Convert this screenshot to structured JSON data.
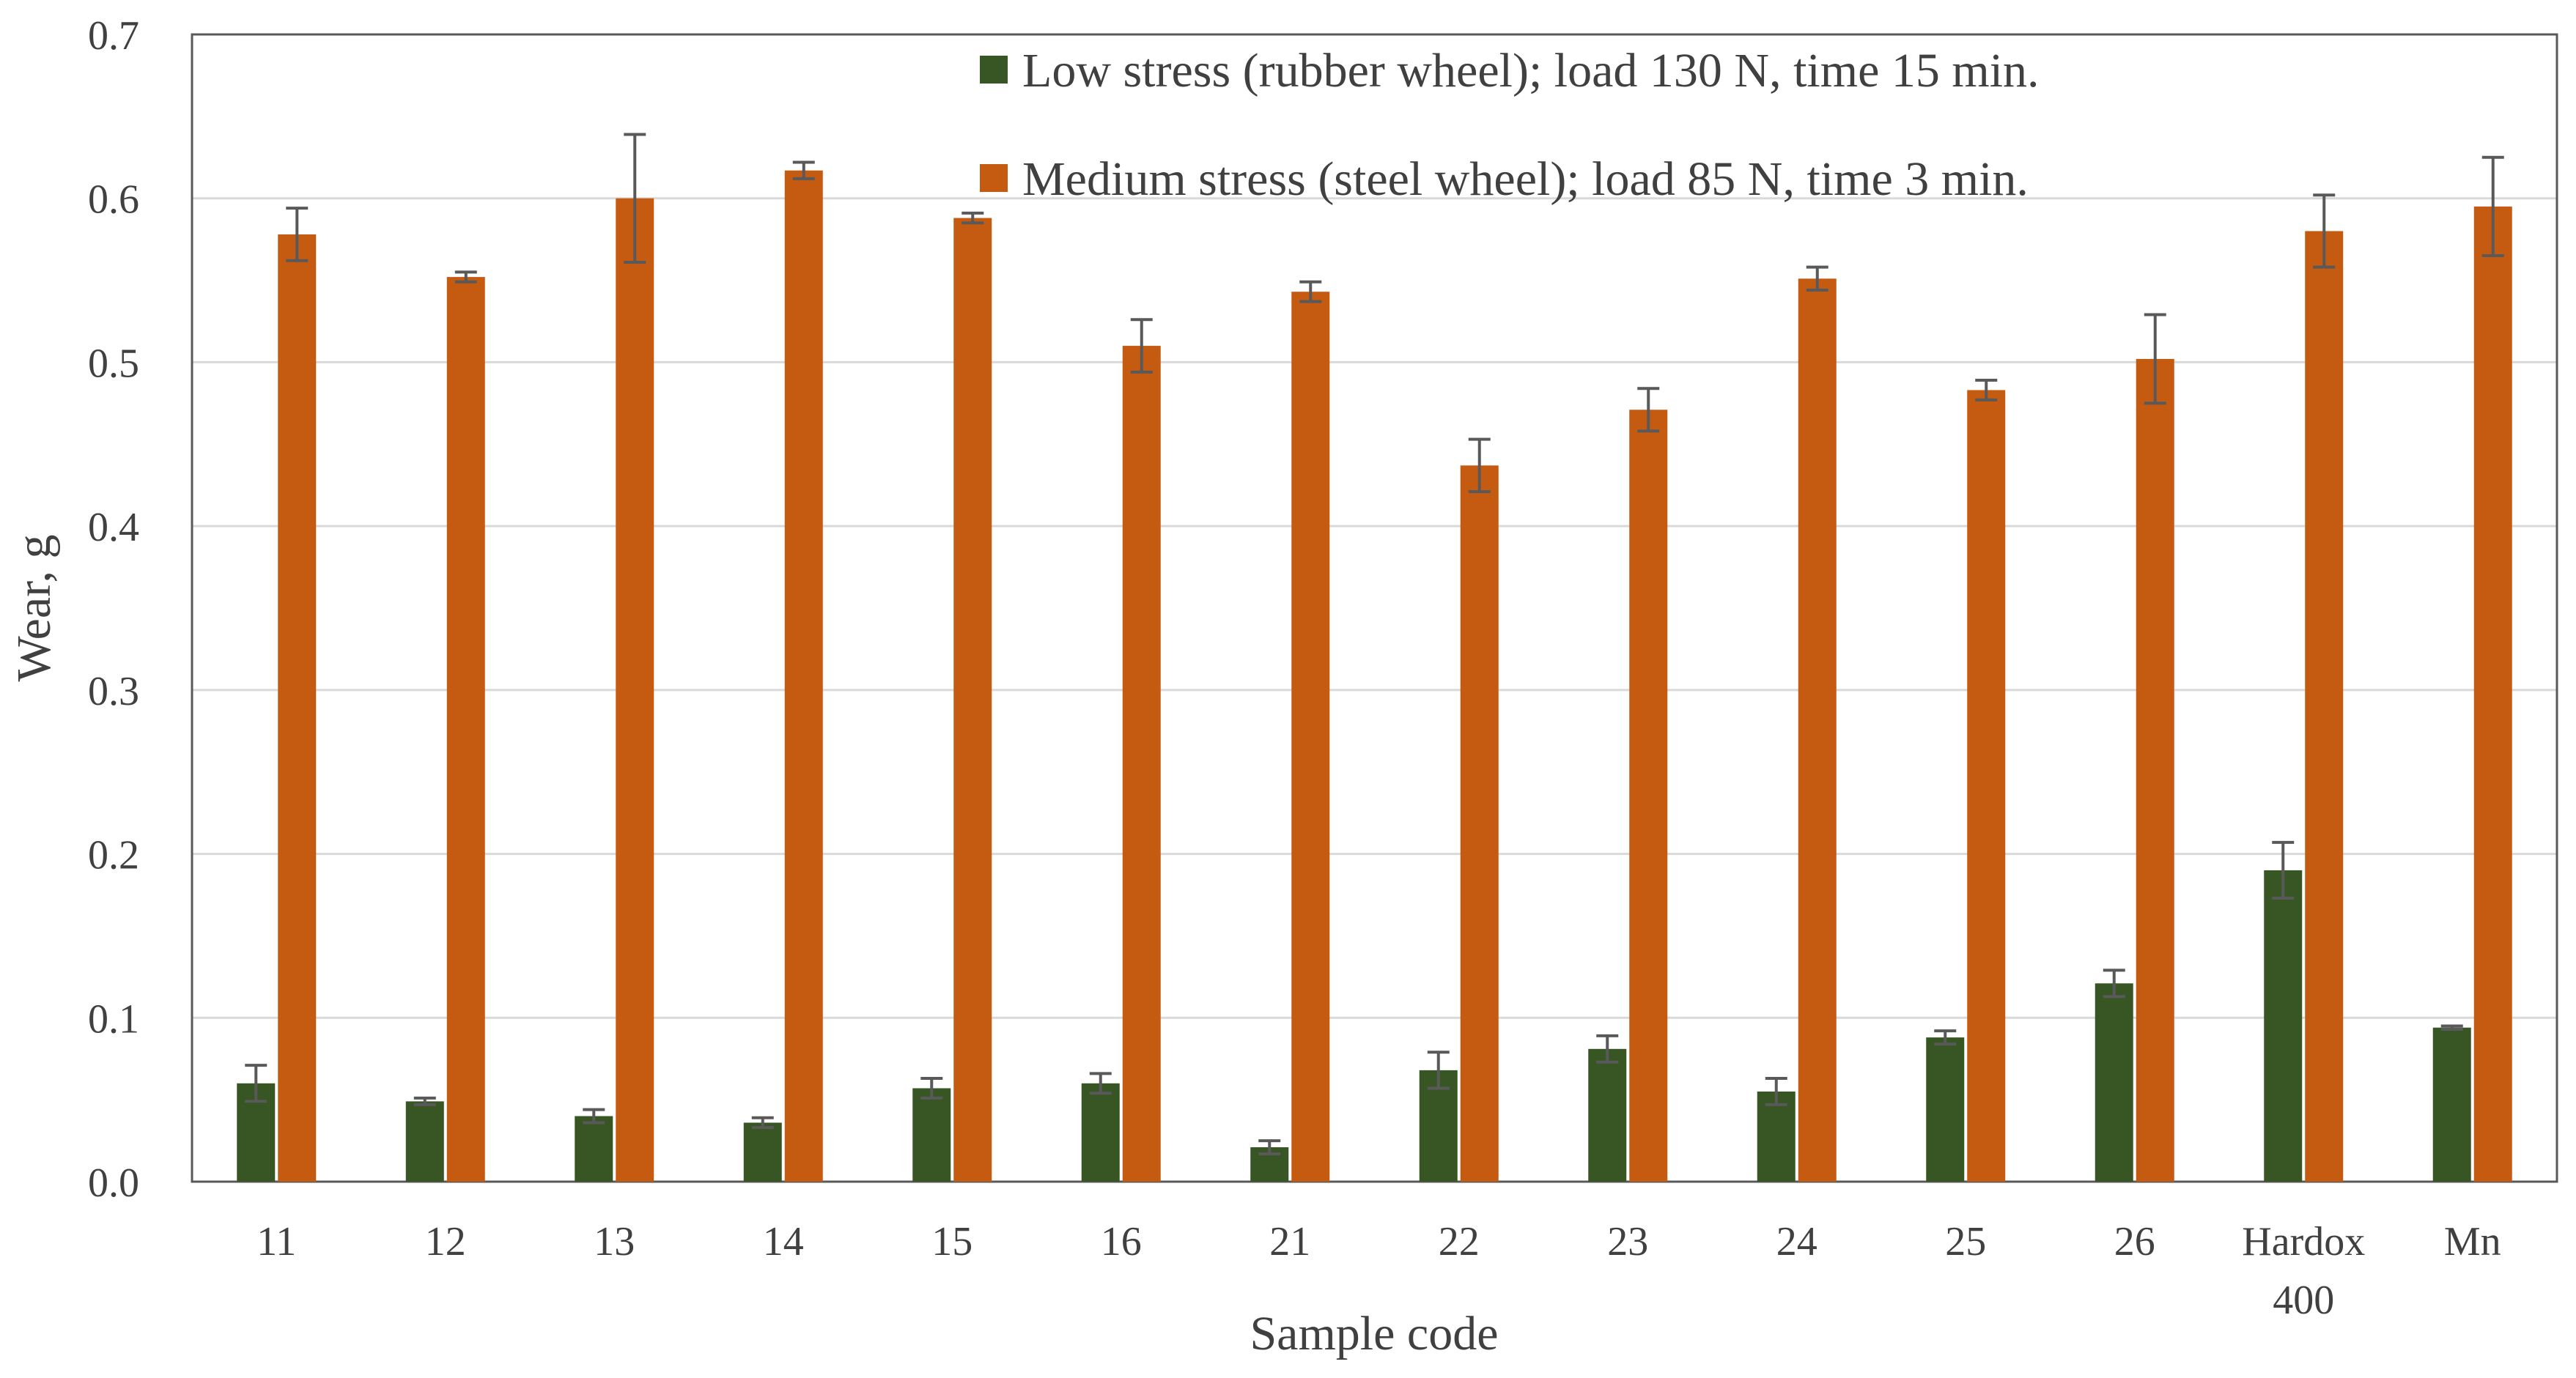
{
  "chart_data": {
    "type": "bar",
    "title": "",
    "xlabel": "Sample code",
    "ylabel": "Wear, g",
    "ylim": [
      0,
      0.7
    ],
    "yticks": [
      "0.0",
      "0.1",
      "0.2",
      "0.3",
      "0.4",
      "0.5",
      "0.6",
      "0.7"
    ],
    "grid": true,
    "legend_position": "top-right",
    "categories": [
      [
        "11"
      ],
      [
        "12"
      ],
      [
        "13"
      ],
      [
        "14"
      ],
      [
        "15"
      ],
      [
        "16"
      ],
      [
        "21"
      ],
      [
        "22"
      ],
      [
        "23"
      ],
      [
        "24"
      ],
      [
        "25"
      ],
      [
        "26"
      ],
      [
        "Hardox",
        "400"
      ],
      [
        "Mn"
      ]
    ],
    "series": [
      {
        "name": "Low stress (rubber wheel); load 130 N, time 15 min.",
        "color": "#375623",
        "values": [
          0.06,
          0.049,
          0.04,
          0.036,
          0.057,
          0.06,
          0.021,
          0.068,
          0.081,
          0.055,
          0.088,
          0.121,
          0.19,
          0.094
        ],
        "errors": [
          0.011,
          0.002,
          0.004,
          0.003,
          0.006,
          0.006,
          0.004,
          0.011,
          0.008,
          0.008,
          0.004,
          0.008,
          0.017,
          0.001
        ]
      },
      {
        "name": "Medium stress (steel wheel); load 85 N, time 3 min.",
        "color": "#C55A11",
        "values": [
          0.578,
          0.552,
          0.6,
          0.617,
          0.588,
          0.51,
          0.543,
          0.437,
          0.471,
          0.551,
          0.483,
          0.502,
          0.58,
          0.595
        ],
        "errors": [
          0.016,
          0.003,
          0.039,
          0.005,
          0.003,
          0.016,
          0.006,
          0.016,
          0.013,
          0.007,
          0.006,
          0.027,
          0.022,
          0.03
        ]
      }
    ]
  }
}
